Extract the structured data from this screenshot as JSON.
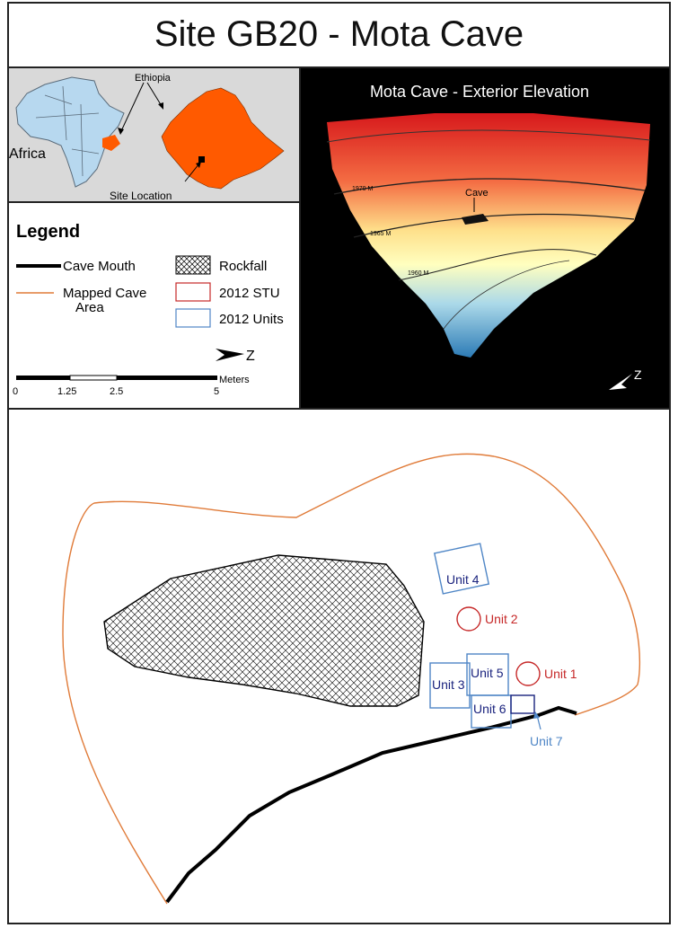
{
  "title": "Site GB20 - Mota Cave",
  "inset_map": {
    "label_country": "Ethiopia",
    "label_continent": "Africa",
    "label_site": "Site Location",
    "land_color": "#b7d8ef",
    "highlight_color": "#ff5a00"
  },
  "legend": {
    "heading": "Legend",
    "items": [
      {
        "symbol": "cave-mouth",
        "label": "Cave Mouth"
      },
      {
        "symbol": "mapped-area",
        "label": "Mapped Cave\nArea"
      },
      {
        "symbol": "rockfall",
        "label": "Rockfall"
      },
      {
        "symbol": "stu",
        "label": "2012 STU"
      },
      {
        "symbol": "units",
        "label": "2012 Units"
      }
    ],
    "north_label": "Z",
    "scale": {
      "unit": "Meters",
      "ticks": [
        "0",
        "1.25",
        "2.5",
        "5"
      ]
    }
  },
  "elevation": {
    "title": "Mota Cave - Exterior Elevation",
    "contours": [
      "1970 M",
      "1965 M",
      "1960 M"
    ],
    "cave_label": "Cave",
    "north_label": "Z"
  },
  "plan": {
    "units": [
      {
        "label": "Unit 4",
        "kind": "unit"
      },
      {
        "label": "Unit 2",
        "kind": "stu"
      },
      {
        "label": "Unit 3",
        "kind": "unit"
      },
      {
        "label": "Unit 5",
        "kind": "unit"
      },
      {
        "label": "Unit 1",
        "kind": "stu"
      },
      {
        "label": "Unit 6",
        "kind": "unit"
      },
      {
        "label": "Unit 7",
        "kind": "unit"
      }
    ],
    "colors": {
      "outline": "#e07b39",
      "unit": "#4f86c6",
      "stu": "#c62828",
      "unit_text": "#1a237e",
      "stu_text": "#c62828"
    }
  }
}
